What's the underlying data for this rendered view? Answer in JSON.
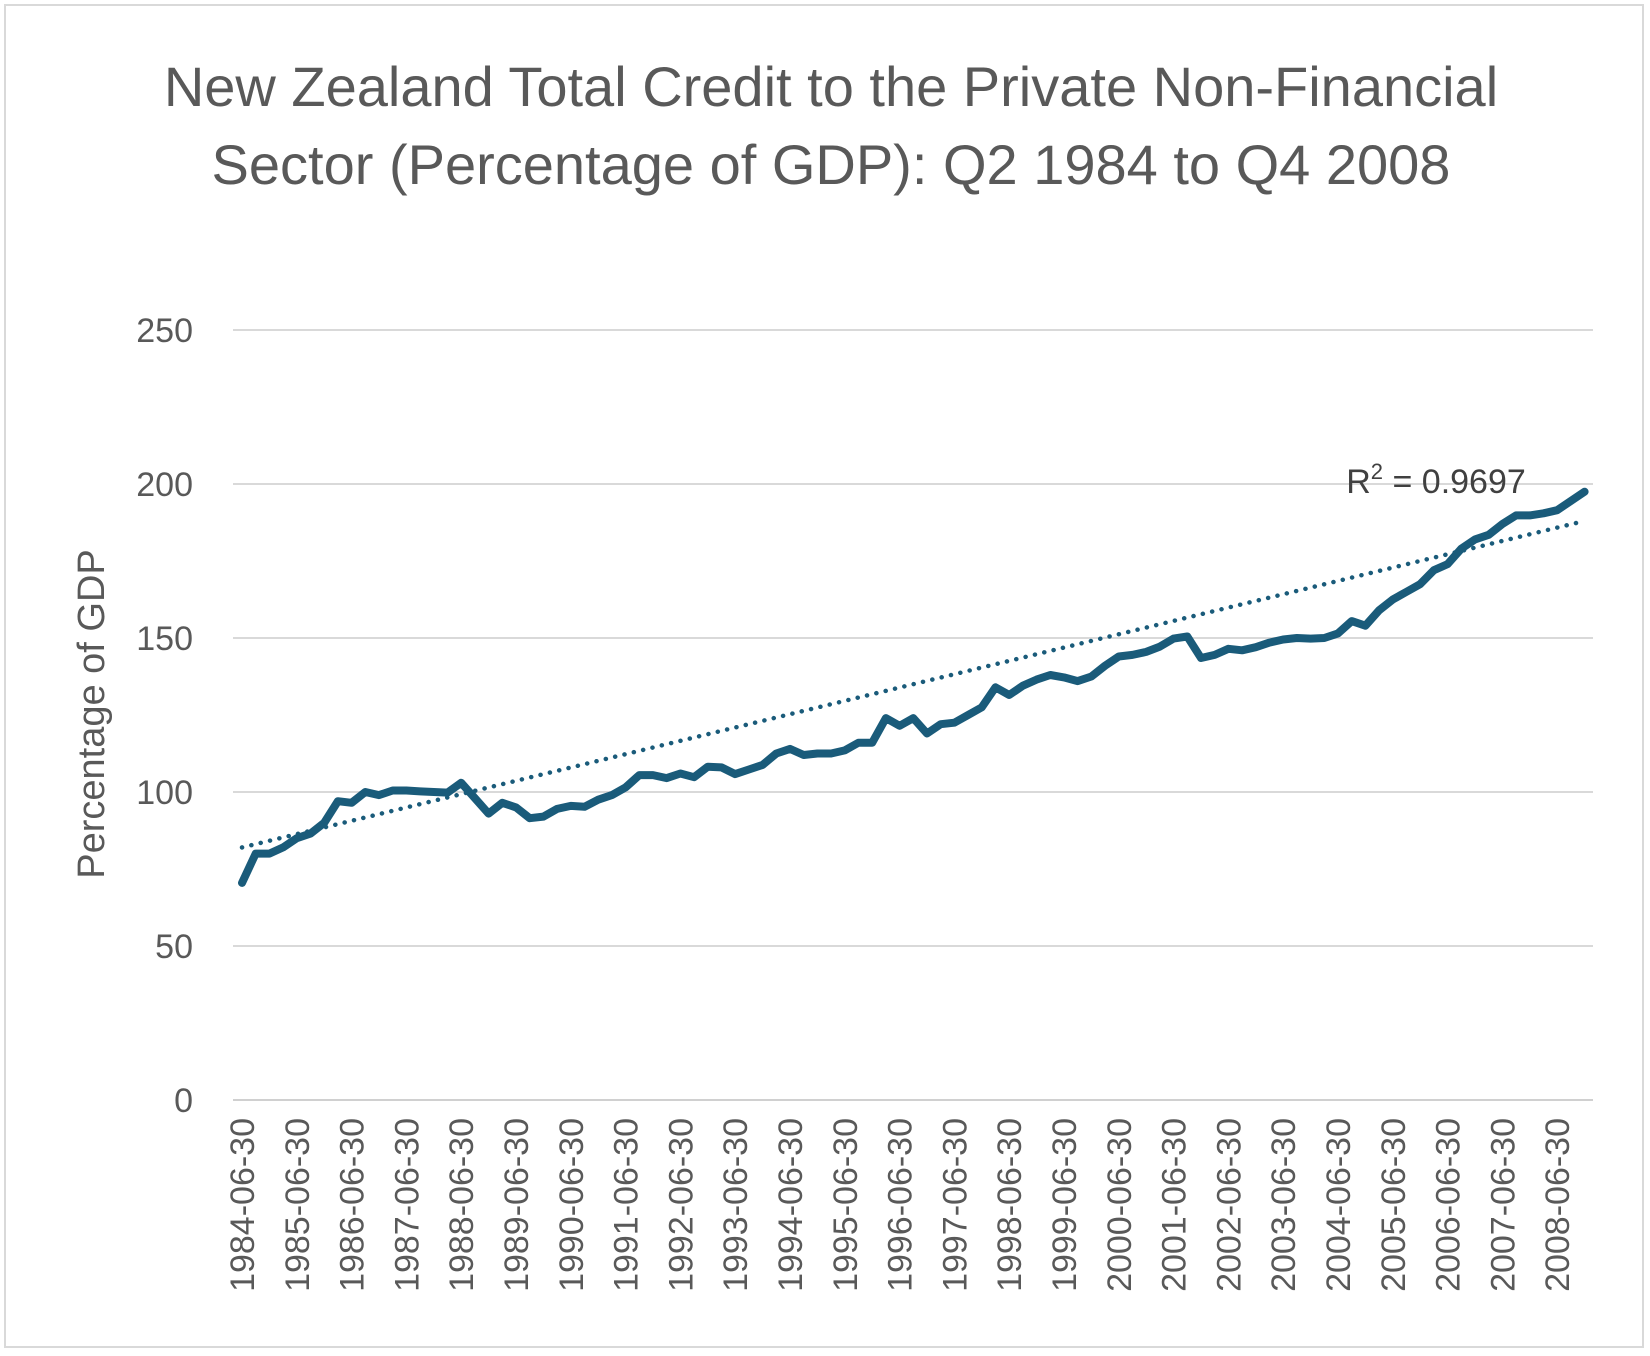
{
  "chart_data": {
    "type": "line",
    "title": "New Zealand Total Credit to the Private Non-Financial Sector (Percentage of GDP): Q2 1984 to Q4 2008",
    "ylabel": "Percentage of GDP",
    "xlabel": "",
    "ylim": [
      0,
      250
    ],
    "yticks": [
      0,
      50,
      100,
      150,
      200,
      250
    ],
    "xtick_labels": [
      "1984-06-30",
      "1985-06-30",
      "1986-06-30",
      "1987-06-30",
      "1988-06-30",
      "1989-06-30",
      "1990-06-30",
      "1991-06-30",
      "1992-06-30",
      "1993-06-30",
      "1994-06-30",
      "1995-06-30",
      "1996-06-30",
      "1997-06-30",
      "1998-06-30",
      "1999-06-30",
      "2000-06-30",
      "2001-06-30",
      "2002-06-30",
      "2003-06-30",
      "2004-06-30",
      "2005-06-30",
      "2006-06-30",
      "2007-06-30",
      "2008-06-30"
    ],
    "grid": true,
    "legend": "none",
    "line_color": "#1a5b7a",
    "trendline": {
      "type": "linear",
      "style": "dotted",
      "start": 82,
      "end": 188,
      "label": "R² = 0.9697"
    },
    "series": [
      {
        "values": [
          70.5,
          80,
          80,
          82,
          85,
          86.5,
          90,
          97,
          96.5,
          100,
          99,
          100.5,
          100.5,
          100.2,
          100,
          99.8,
          103,
          98,
          93,
          96.5,
          95,
          91.5,
          92,
          94.5,
          95.5,
          95.2,
          97.5,
          99,
          101.5,
          105.5,
          105.5,
          104.5,
          106,
          104.8,
          108.2,
          108,
          105.8,
          107.3,
          108.8,
          112.5,
          114,
          112,
          112.5,
          112.5,
          113.5,
          116,
          116,
          124,
          121.5,
          124,
          119,
          122,
          122.5,
          125,
          127.5,
          134,
          131.5,
          134.5,
          136.5,
          138,
          137.2,
          136,
          137.5,
          141,
          144,
          144.5,
          145.5,
          147.2,
          149.8,
          150.5,
          143.5,
          144.5,
          146.5,
          146,
          147,
          148.5,
          149.5,
          150,
          149.8,
          150,
          151.5,
          155.5,
          154,
          159,
          162.5,
          165,
          167.5,
          172,
          174,
          179,
          182,
          183.5,
          187,
          189.8,
          189.8,
          190.5,
          191.5,
          194.5,
          197.5
        ]
      }
    ]
  }
}
